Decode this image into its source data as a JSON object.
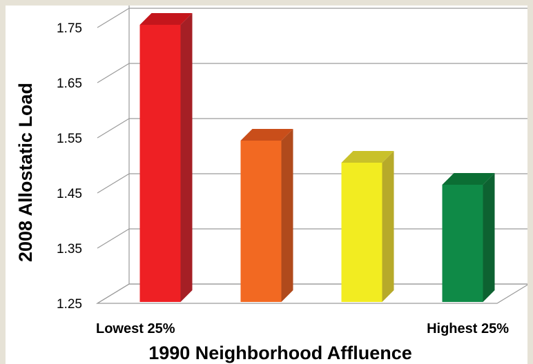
{
  "chart_data": {
    "type": "bar",
    "categories": [
      "Lowest 25%",
      "",
      "",
      "Highest 25%"
    ],
    "values": [
      1.755,
      1.545,
      1.505,
      1.465
    ],
    "bar_colors": [
      "#ee2024",
      "#f26922",
      "#f2ec21",
      "#0f8a47"
    ],
    "bar_side_colors": [
      "#a51f25",
      "#b04a1c",
      "#b7aa2a",
      "#0d6231"
    ],
    "bar_top_colors": [
      "#c4161c",
      "#c94e1a",
      "#c9c12a",
      "#0b6e34"
    ],
    "ylabel": "2008 Allostatic Load",
    "xlabel": "1990 Neighborhood Affluence",
    "y_ticks": [
      "1.25",
      "1.35",
      "1.45",
      "1.55",
      "1.65",
      "1.75"
    ],
    "ylim": [
      1.25,
      1.75
    ],
    "grid": true,
    "style": "3d-column"
  }
}
